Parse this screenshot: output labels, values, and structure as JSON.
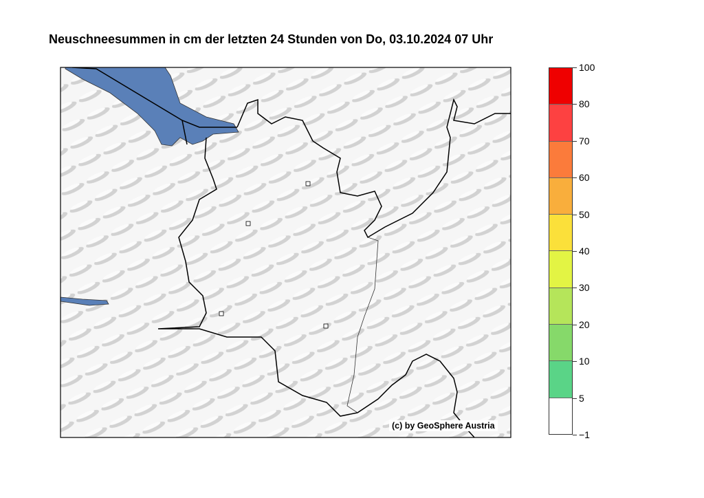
{
  "title": "Neuschneesummen in cm der letzten 24 Stunden von Do, 03.10.2024 07 Uhr",
  "copyright": "(c) by GeoSphere Austria",
  "colorbar": {
    "labels": [
      "100",
      "80",
      "70",
      "60",
      "50",
      "40",
      "30",
      "20",
      "10",
      "5",
      "−1"
    ],
    "colors": [
      "#ef0000",
      "#fd4141",
      "#fb7b3b",
      "#f9ae3c",
      "#fbe03a",
      "#e3f444",
      "#b5e55a",
      "#86d96a",
      "#5ad487",
      "#ffffff"
    ]
  },
  "colors": {
    "water": "#5a80b8",
    "border": "#000000"
  }
}
